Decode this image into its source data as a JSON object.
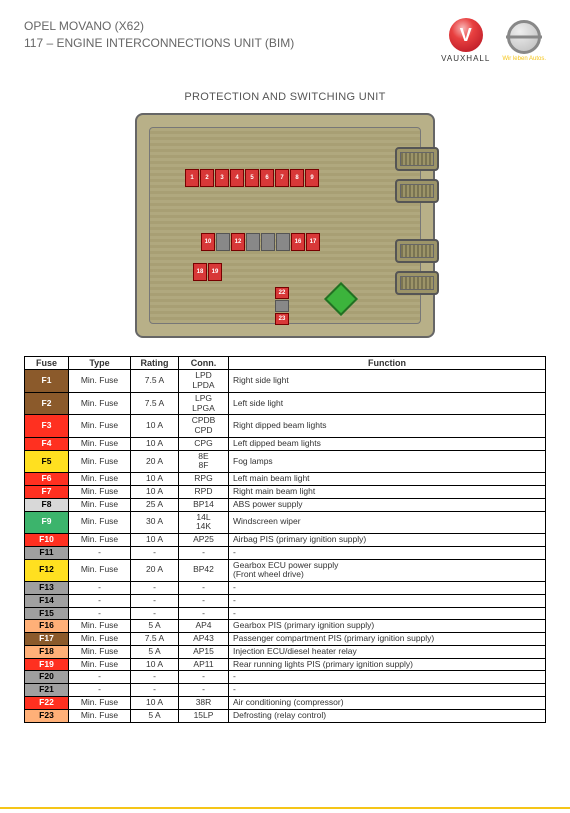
{
  "header": {
    "title_line1": "OPEL MOVANO (X62)",
    "title_line2": "117 – ENGINE INTERCONNECTIONS UNIT (BIM)",
    "vauxhall_label": "VAUXHALL",
    "opel_label": "Wir leben Autos."
  },
  "subtitle": "PROTECTION AND SWITCHING UNIT",
  "diagram": {
    "bg_color": "#b8b088",
    "strip1_labels": [
      "1",
      "2",
      "3",
      "4",
      "5",
      "6",
      "7",
      "8",
      "9"
    ],
    "strip2_labels": [
      "10",
      "",
      "12",
      "",
      "",
      "",
      "16",
      "17"
    ],
    "strip3_labels": [
      "18",
      "19"
    ],
    "strip4_labels": [
      "22",
      "",
      "23"
    ],
    "connector_positions": [
      32,
      64,
      124,
      156
    ]
  },
  "table": {
    "headers": [
      "Fuse",
      "Type",
      "Rating",
      "Conn.",
      "Function"
    ],
    "rows": [
      {
        "f": "F1",
        "c": "#8b5a2b",
        "t": "Min. Fuse",
        "r": "7.5 A",
        "cn": "LPD\nLPDA",
        "fn": "Right side light"
      },
      {
        "f": "F2",
        "c": "#8b5a2b",
        "t": "Min. Fuse",
        "r": "7.5 A",
        "cn": "LPG\nLPGA",
        "fn": "Left side light"
      },
      {
        "f": "F3",
        "c": "#ff3020",
        "t": "Min. Fuse",
        "r": "10 A",
        "cn": "CPDB\nCPD",
        "fn": "Right dipped beam lights"
      },
      {
        "f": "F4",
        "c": "#ff3020",
        "t": "Min. Fuse",
        "r": "10 A",
        "cn": "CPG",
        "fn": "Left dipped beam lights"
      },
      {
        "f": "F5",
        "c": "#ffe020",
        "t": "Min. Fuse",
        "r": "20 A",
        "cn": "8E\n8F",
        "fn": "Fog lamps"
      },
      {
        "f": "F6",
        "c": "#ff3020",
        "t": "Min. Fuse",
        "r": "10 A",
        "cn": "RPG",
        "fn": "Left main beam light"
      },
      {
        "f": "F7",
        "c": "#ff3020",
        "t": "Min. Fuse",
        "r": "10 A",
        "cn": "RPD",
        "fn": "Right main beam light"
      },
      {
        "f": "F8",
        "c": "#d8d8d8",
        "t": "Min. Fuse",
        "r": "25 A",
        "cn": "BP14",
        "fn": "ABS power supply"
      },
      {
        "f": "F9",
        "c": "#3cb46c",
        "t": "Min. Fuse",
        "r": "30 A",
        "cn": "14L\n14K",
        "fn": "Windscreen wiper"
      },
      {
        "f": "F10",
        "c": "#ff3020",
        "t": "Min. Fuse",
        "r": "10 A",
        "cn": "AP25",
        "fn": "Airbag PIS (primary ignition supply)"
      },
      {
        "f": "F11",
        "c": "#a0a0a0",
        "t": "-",
        "r": "-",
        "cn": "-",
        "fn": "-"
      },
      {
        "f": "F12",
        "c": "#ffe020",
        "t": "Min. Fuse",
        "r": "20 A",
        "cn": "BP42",
        "fn": "Gearbox ECU power supply\n(Front wheel drive)"
      },
      {
        "f": "F13",
        "c": "#a0a0a0",
        "t": "-",
        "r": "-",
        "cn": "-",
        "fn": "-"
      },
      {
        "f": "F14",
        "c": "#a0a0a0",
        "t": "-",
        "r": "-",
        "cn": "-",
        "fn": "-"
      },
      {
        "f": "F15",
        "c": "#a0a0a0",
        "t": "-",
        "r": "-",
        "cn": "-",
        "fn": "-"
      },
      {
        "f": "F16",
        "c": "#ffb078",
        "t": "Min. Fuse",
        "r": "5 A",
        "cn": "AP4",
        "fn": "Gearbox PIS (primary ignition supply)"
      },
      {
        "f": "F17",
        "c": "#8b5a2b",
        "t": "Min. Fuse",
        "r": "7.5 A",
        "cn": "AP43",
        "fn": "Passenger compartment PIS (primary ignition supply)"
      },
      {
        "f": "F18",
        "c": "#ffb078",
        "t": "Min. Fuse",
        "r": "5 A",
        "cn": "AP15",
        "fn": "Injection ECU/diesel heater relay"
      },
      {
        "f": "F19",
        "c": "#ff3020",
        "t": "Min. Fuse",
        "r": "10 A",
        "cn": "AP11",
        "fn": "Rear running lights PIS (primary ignition supply)"
      },
      {
        "f": "F20",
        "c": "#a0a0a0",
        "t": "-",
        "r": "-",
        "cn": "-",
        "fn": "-"
      },
      {
        "f": "F21",
        "c": "#a0a0a0",
        "t": "-",
        "r": "-",
        "cn": "-",
        "fn": "-"
      },
      {
        "f": "F22",
        "c": "#ff3020",
        "t": "Min. Fuse",
        "r": "10 A",
        "cn": "38R",
        "fn": "Air conditioning (compressor)"
      },
      {
        "f": "F23",
        "c": "#ffb078",
        "t": "Min. Fuse",
        "r": "5 A",
        "cn": "15LP",
        "fn": "Defrosting (relay control)"
      }
    ]
  },
  "dark_text_fuses": [
    "F5",
    "F8",
    "F11",
    "F12",
    "F13",
    "F14",
    "F15",
    "F16",
    "F18",
    "F20",
    "F21",
    "F23"
  ]
}
